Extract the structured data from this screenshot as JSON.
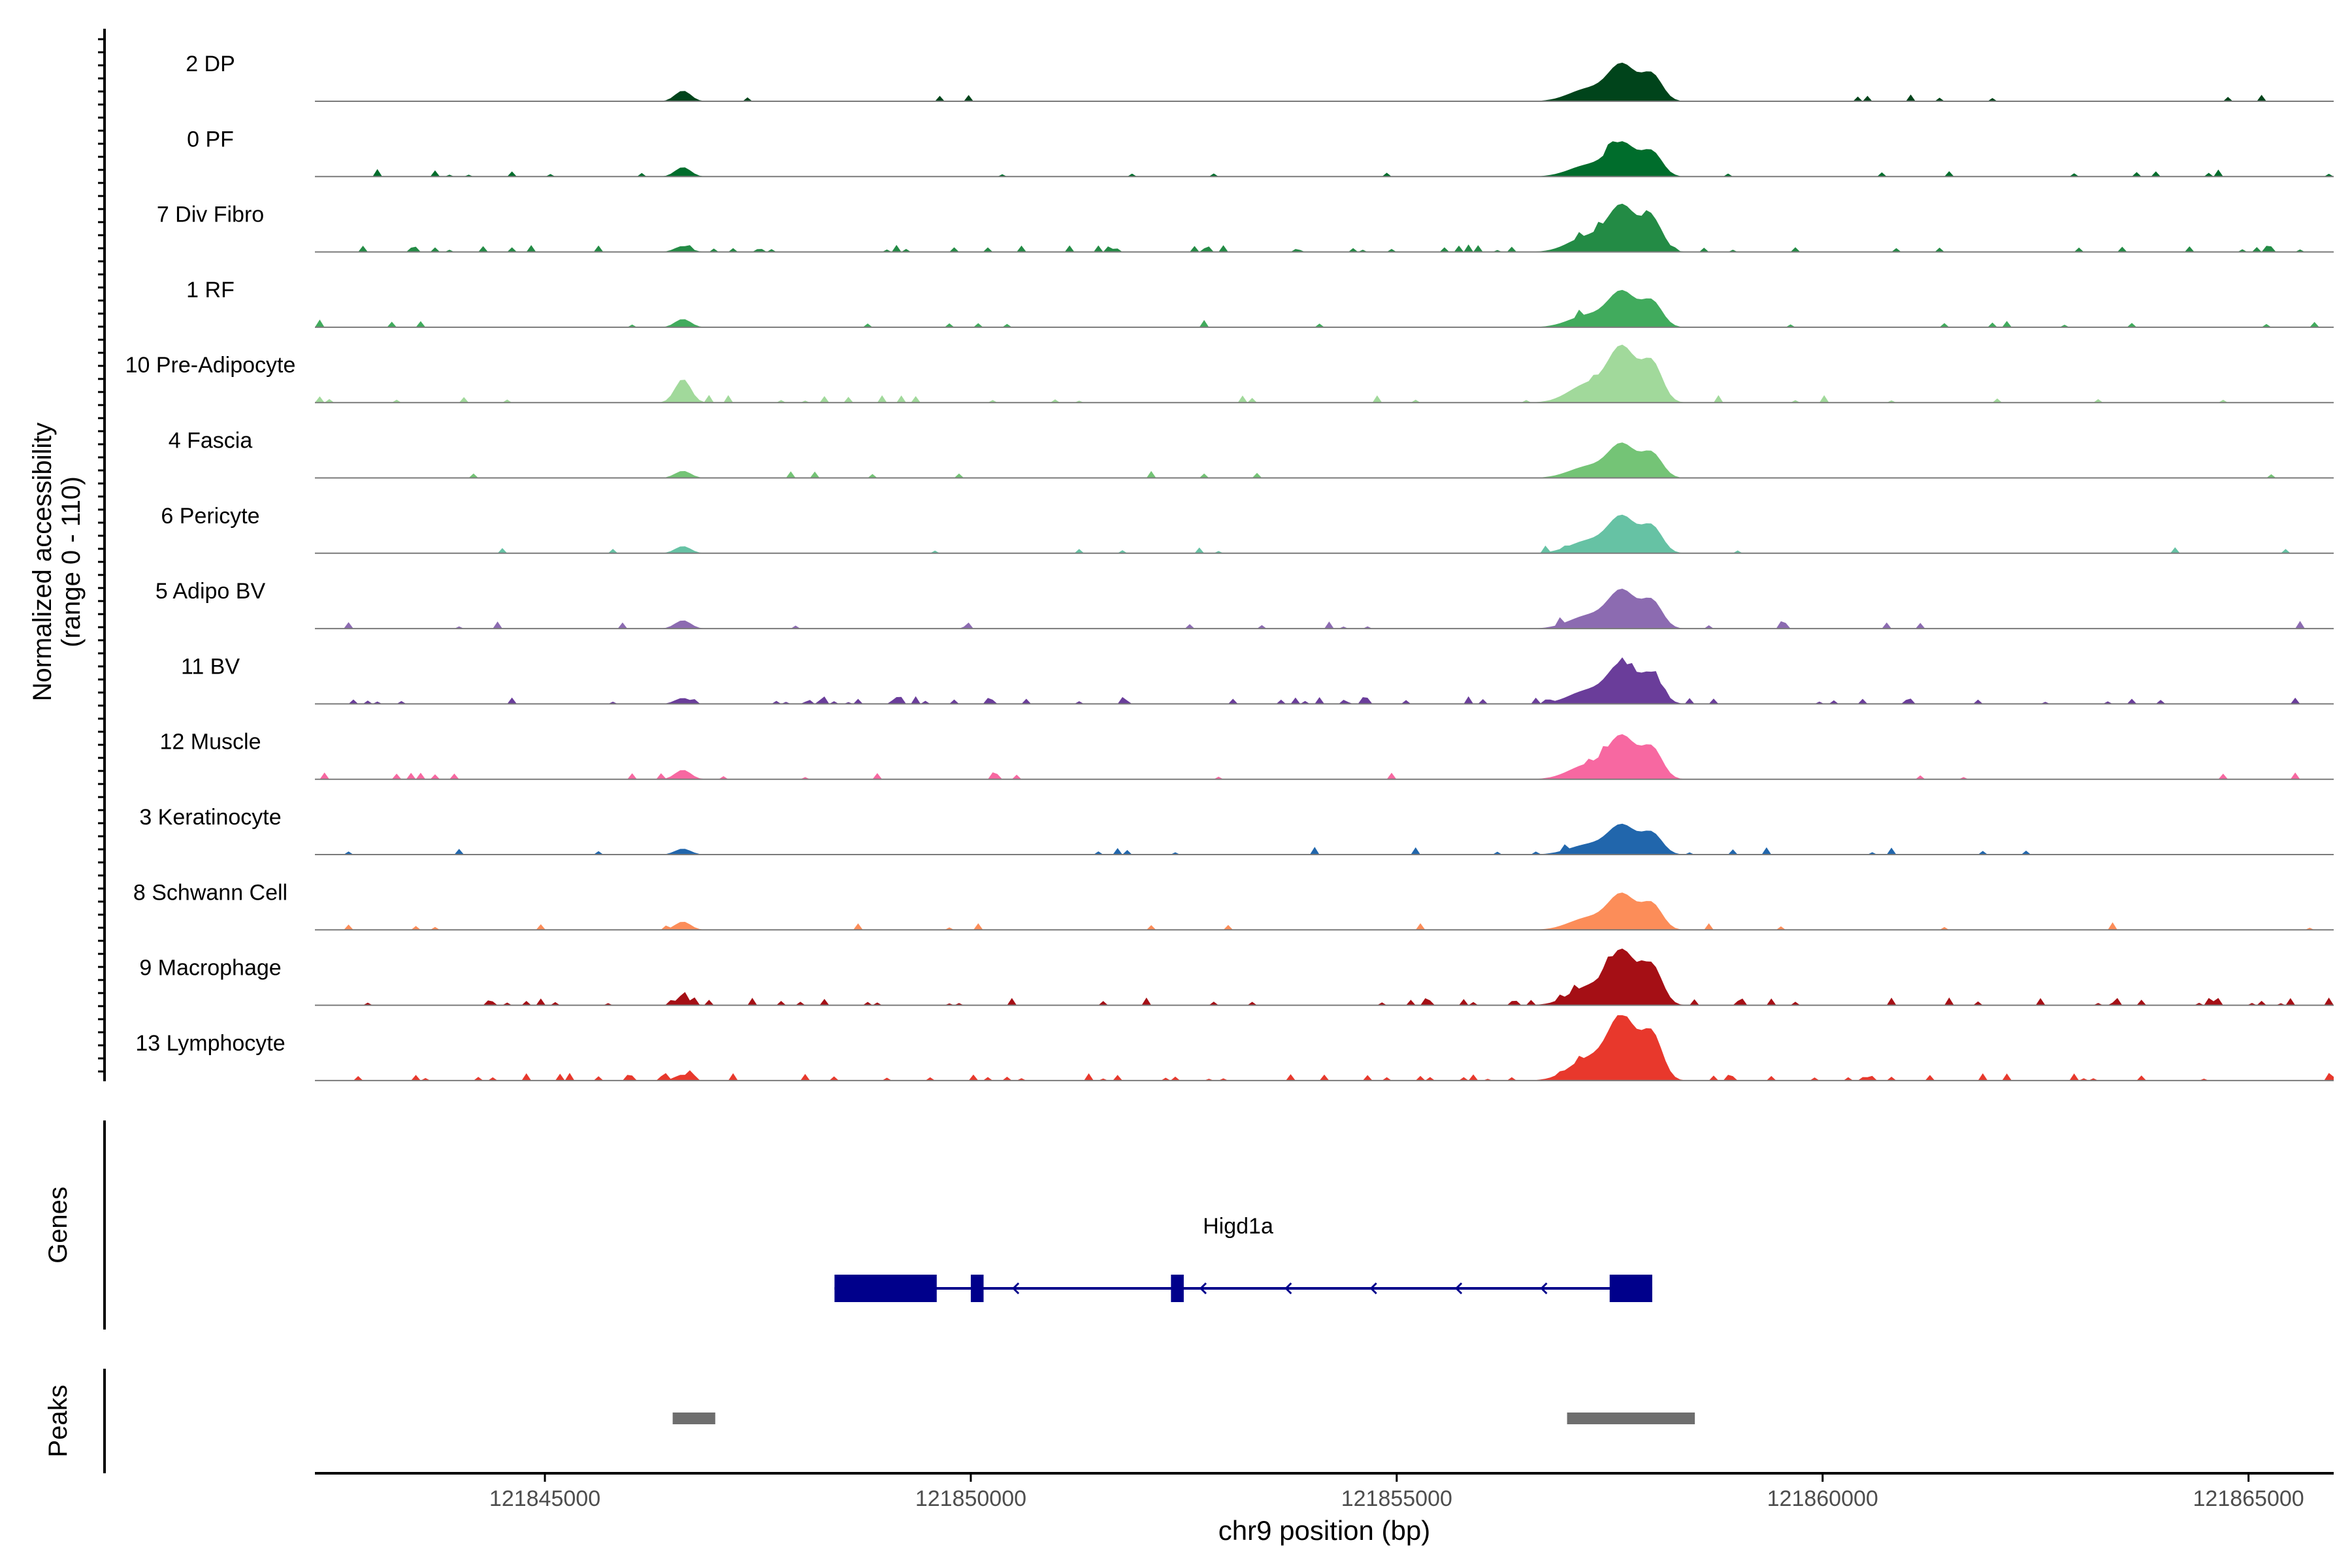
{
  "chart_data": {
    "type": "area",
    "title": "",
    "ylabel_line1": "Normalized accessibility",
    "ylabel_line2": "(range 0 - 110)",
    "yrange": [
      0,
      110
    ],
    "xlabel": "chr9 position (bp)",
    "xlim": [
      121842300,
      121866000
    ],
    "x_ticks": [
      121845000,
      121850000,
      121855000,
      121860000,
      121865000
    ],
    "x_tick_labels": [
      "121845000",
      "121850000",
      "121855000",
      "121860000",
      "121865000"
    ],
    "tracks": [
      {
        "name": "2 DP",
        "color": "#00441b",
        "peak_main": 60,
        "peak_side": 18,
        "noise": 0.02
      },
      {
        "name": "0 PF",
        "color": "#006d2c",
        "peak_main": 55,
        "peak_side": 16,
        "noise": 0.03
      },
      {
        "name": "7 Div Fibro",
        "color": "#238b45",
        "peak_main": 75,
        "peak_side": 10,
        "noise": 0.12
      },
      {
        "name": "1 RF",
        "color": "#41ab5d",
        "peak_main": 58,
        "peak_side": 14,
        "noise": 0.03
      },
      {
        "name": "10 Pre-Adipocyte",
        "color": "#a1d99b",
        "peak_main": 90,
        "peak_side": 40,
        "noise": 0.08
      },
      {
        "name": "4 Fascia",
        "color": "#74c476",
        "peak_main": 55,
        "peak_side": 12,
        "noise": 0.03
      },
      {
        "name": "6 Pericyte",
        "color": "#66c2a4",
        "peak_main": 60,
        "peak_side": 12,
        "noise": 0.03
      },
      {
        "name": "5 Adipo BV",
        "color": "#8c6bb1",
        "peak_main": 62,
        "peak_side": 14,
        "noise": 0.05
      },
      {
        "name": "11 BV",
        "color": "#6a3d9a",
        "peak_main": 65,
        "peak_side": 10,
        "noise": 0.12
      },
      {
        "name": "12 Muscle",
        "color": "#f768a1",
        "peak_main": 70,
        "peak_side": 16,
        "noise": 0.05
      },
      {
        "name": "3 Keratinocyte",
        "color": "#2166ac",
        "peak_main": 48,
        "peak_side": 10,
        "noise": 0.04
      },
      {
        "name": "8 Schwann Cell",
        "color": "#fc8d59",
        "peak_main": 58,
        "peak_side": 14,
        "noise": 0.05
      },
      {
        "name": "9 Macrophage",
        "color": "#a50f15",
        "peak_main": 88,
        "peak_side": 12,
        "noise": 0.14
      },
      {
        "name": "13 Lymphocyte",
        "color": "#e8382c",
        "peak_main": 105,
        "peak_side": 10,
        "noise": 0.14
      }
    ],
    "genes_label": "Genes",
    "gene": {
      "name": "Higd1a",
      "strand": "-",
      "start": 121848400,
      "end": 121858000,
      "exons": [
        [
          121848400,
          121849600
        ],
        [
          121850000,
          121850150
        ],
        [
          121852350,
          121852500
        ],
        [
          121857500,
          121858000
        ]
      ]
    },
    "peaks_label": "Peaks",
    "peaks": [
      [
        121846500,
        121847000
      ],
      [
        121857000,
        121858500
      ]
    ],
    "colors": {
      "axis": "#000000",
      "baseline": "#7a7a7a",
      "gene": "#00008b",
      "peak": "#6e6e6e"
    }
  }
}
